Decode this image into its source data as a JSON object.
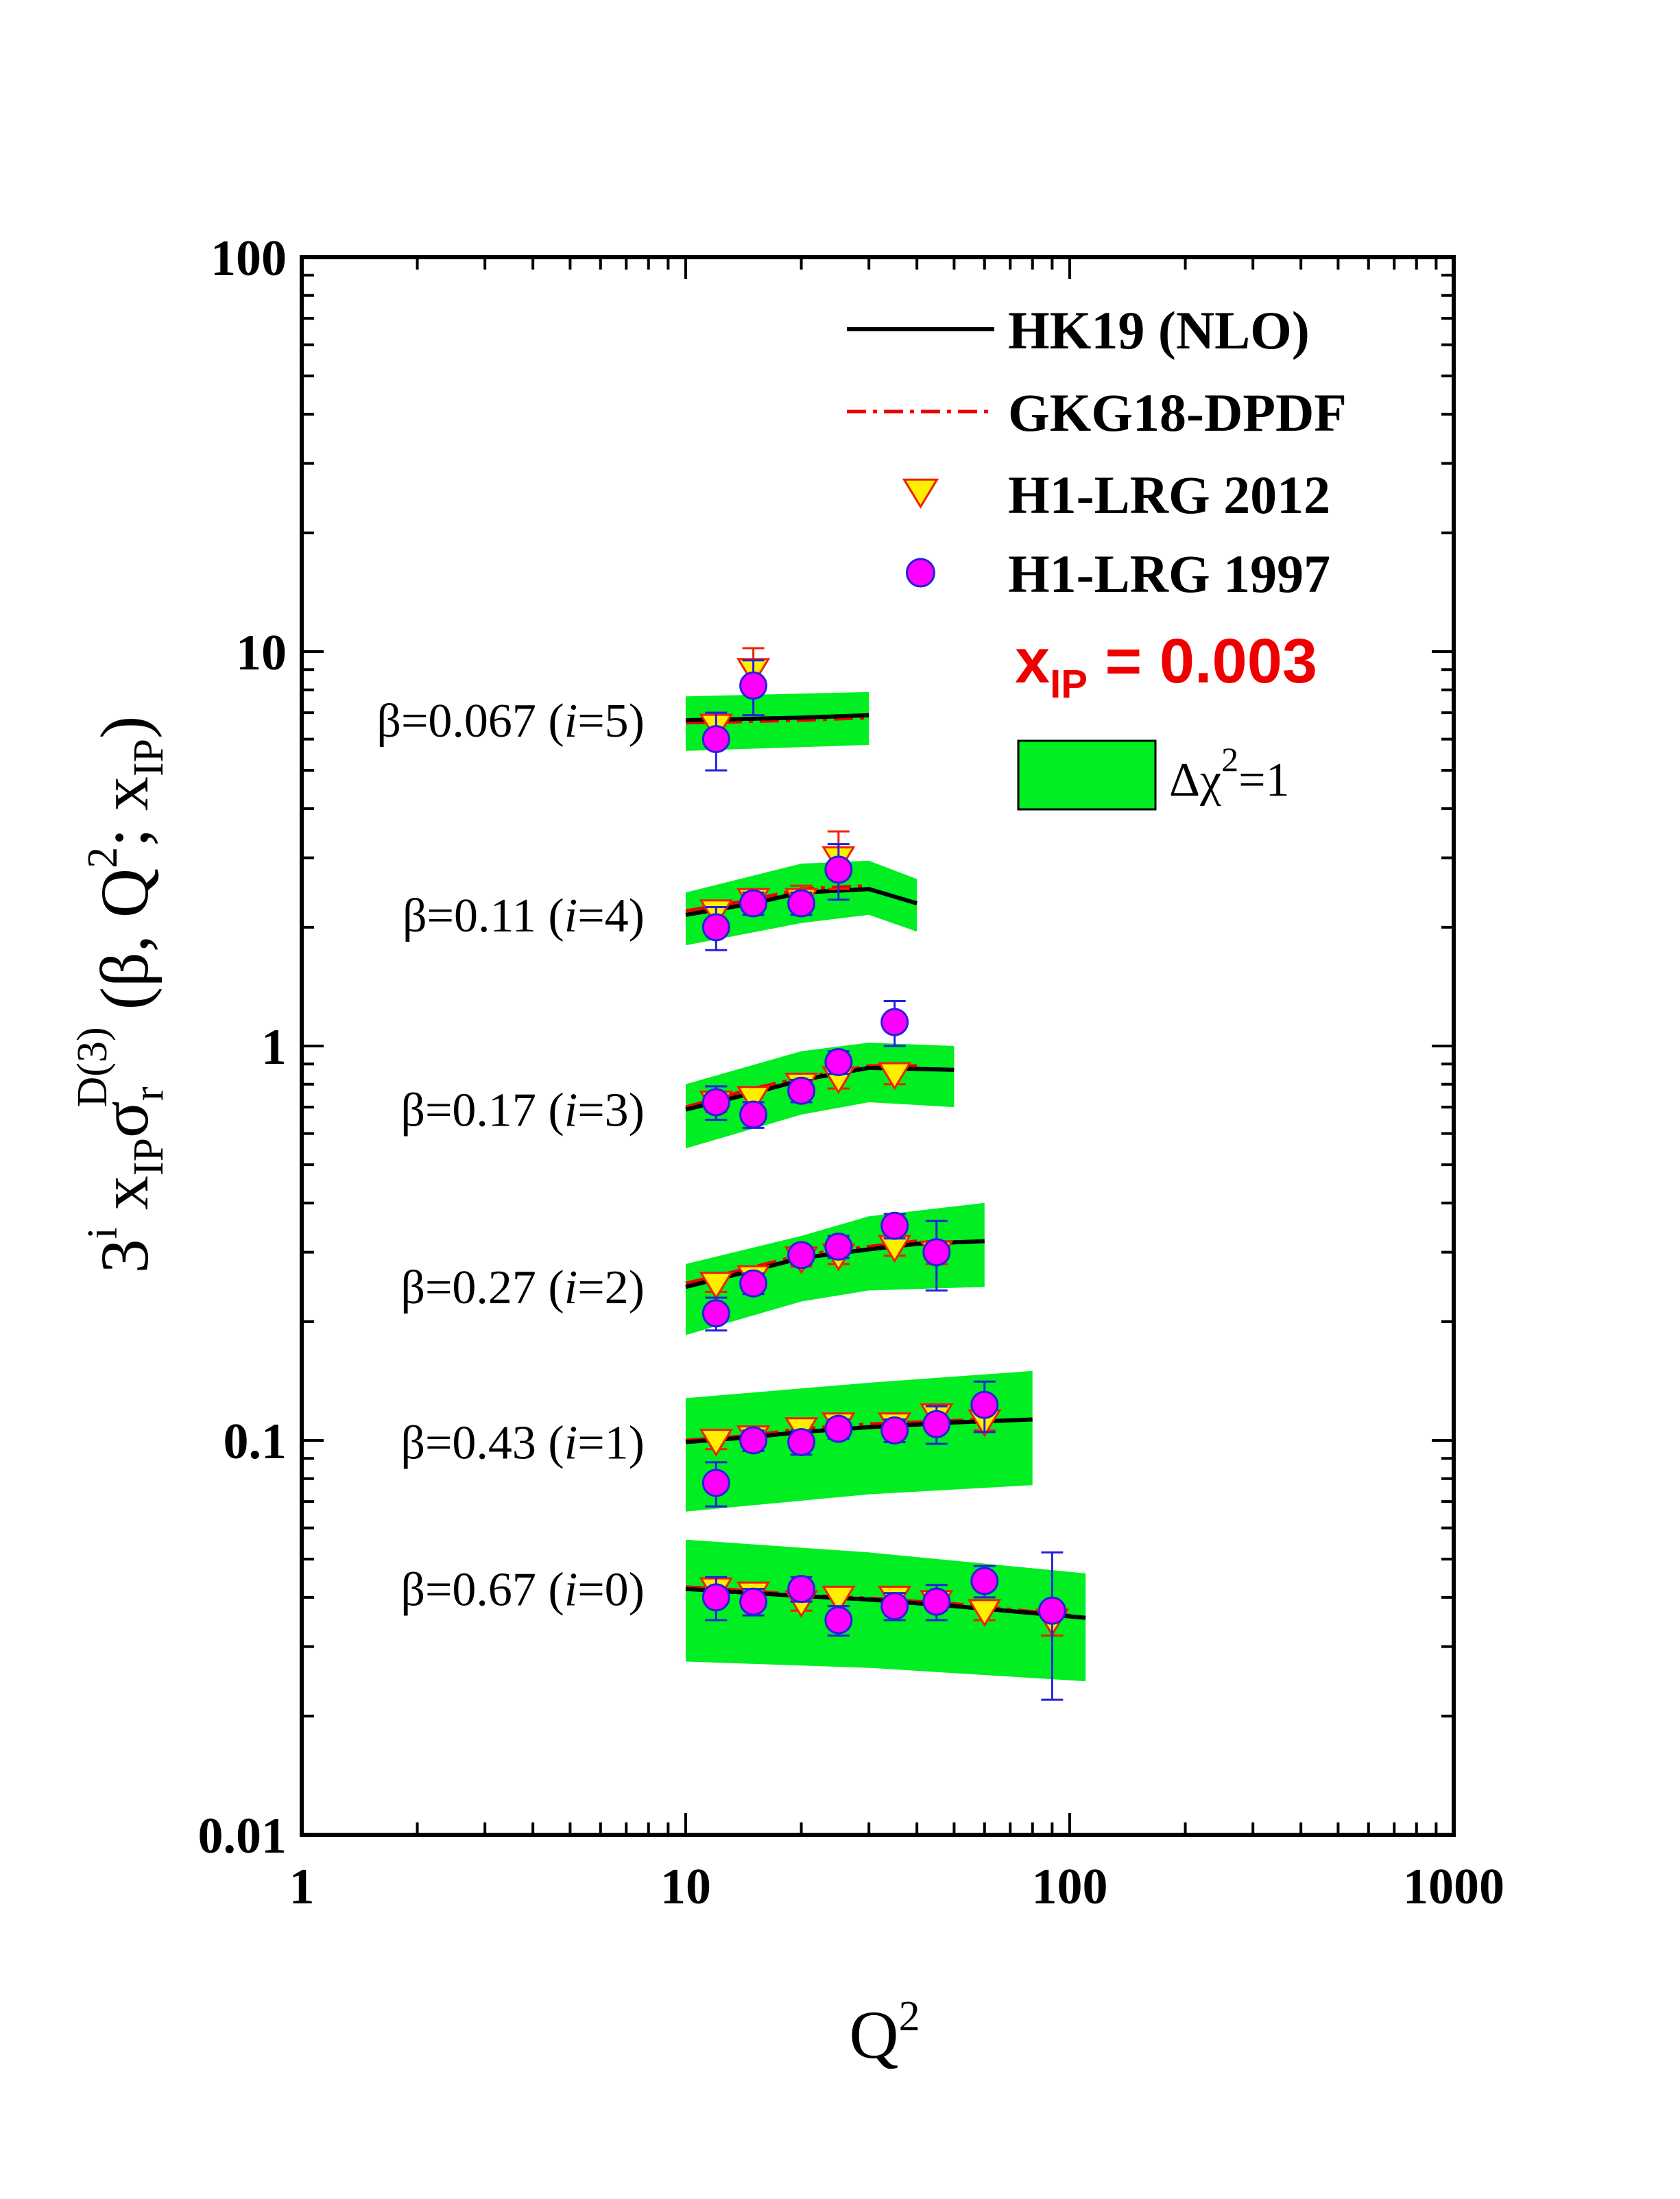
{
  "colors": {
    "band": "#00ee22",
    "hk19_line": "#000000",
    "gkg18_line": "#ee0000",
    "triangle_fill": "#ffee00",
    "triangle_stroke": "#ee2200",
    "circle_fill": "#ff00ff",
    "circle_stroke": "#2222dd",
    "xip_text": "#ee0000"
  },
  "chart_data": {
    "type": "scatter",
    "title": "",
    "xscale": "log",
    "yscale": "log",
    "xlim": [
      1,
      1000
    ],
    "ylim": [
      0.01,
      100
    ],
    "xlabel": "Q",
    "xlabel_sup": "2",
    "ylabel": {
      "prefix": "3",
      "prefix_sup": "i",
      "x": "x",
      "x_sub": "IP",
      "sigma": "σ",
      "sigma_sub": "r",
      "sigma_sup": "D(3)",
      "args": " (β, Q",
      "args_sup": "2",
      "args_mid": "; x",
      "args_sub": "IP",
      "args_end": ")"
    },
    "x_ticks": [
      {
        "value": 1,
        "label": "1"
      },
      {
        "value": 10,
        "label": "10"
      },
      {
        "value": 100,
        "label": "100"
      },
      {
        "value": 1000,
        "label": "1000"
      }
    ],
    "y_ticks": [
      {
        "value": 0.01,
        "label": "0.01"
      },
      {
        "value": 0.1,
        "label": "0.1"
      },
      {
        "value": 1,
        "label": "1"
      },
      {
        "value": 10,
        "label": "10"
      },
      {
        "value": 100,
        "label": "100"
      }
    ],
    "legend": {
      "position": "top-right",
      "entries": [
        {
          "label": "HK19 (NLO)",
          "marker": "solid-line"
        },
        {
          "label": "GKG18-DPDF",
          "marker": "dashdot-line"
        },
        {
          "label": "H1-LRG 2012",
          "marker": "triangle-down"
        },
        {
          "label": "H1-LRG 1997",
          "marker": "circle"
        }
      ],
      "xip_prefix": "x",
      "xip_sub": "IP",
      "xip_value": " = 0.003",
      "band_label": "Δχ",
      "band_label_sup": "2",
      "band_label_end": "=1"
    },
    "series": [
      {
        "beta_label": "β=0.067 (i=5)",
        "beta_parts": {
          "pre": "β=0.067 (",
          "i": "i",
          "post": "=5)"
        },
        "hk19": {
          "x": [
            10,
            20,
            30
          ],
          "y": [
            6.7,
            6.8,
            6.9
          ]
        },
        "gkg18": {
          "x": [
            10,
            20,
            30
          ],
          "y": [
            6.6,
            6.7,
            6.8
          ]
        },
        "band": {
          "x": [
            10,
            30
          ],
          "upper": [
            7.7,
            7.9
          ],
          "lower": [
            5.6,
            5.8
          ]
        },
        "h1_2012": [
          {
            "x": 12,
            "y": 6.5,
            "err": 0.5
          },
          {
            "x": 15,
            "y": 9.0,
            "err": 1.2
          }
        ],
        "h1_1997": [
          {
            "x": 12,
            "y": 6.0,
            "err": 1.0
          },
          {
            "x": 15,
            "y": 8.2,
            "err": 1.3
          }
        ]
      },
      {
        "beta_label": "β=0.11 (i=4)",
        "beta_parts": {
          "pre": "β=0.11 (",
          "i": "i",
          "post": "=4)"
        },
        "hk19": {
          "x": [
            10,
            15,
            20,
            30,
            40
          ],
          "y": [
            2.15,
            2.3,
            2.45,
            2.5,
            2.3
          ]
        },
        "gkg18": {
          "x": [
            10,
            15,
            20,
            30
          ],
          "y": [
            2.2,
            2.35,
            2.5,
            2.55
          ]
        },
        "band": {
          "x": [
            10,
            20,
            30,
            40
          ],
          "upper": [
            2.45,
            2.9,
            2.95,
            2.65
          ],
          "lower": [
            1.8,
            2.05,
            2.15,
            1.95
          ]
        },
        "h1_2012": [
          {
            "x": 12,
            "y": 2.2,
            "err": 0.12
          },
          {
            "x": 15,
            "y": 2.35,
            "err": 0.15
          },
          {
            "x": 20,
            "y": 2.35,
            "err": 0.2
          },
          {
            "x": 25,
            "y": 3.0,
            "err": 0.5
          }
        ],
        "h1_1997": [
          {
            "x": 12,
            "y": 2.0,
            "err": 0.25
          },
          {
            "x": 15,
            "y": 2.3,
            "err": 0.15
          },
          {
            "x": 20,
            "y": 2.3,
            "err": 0.15
          },
          {
            "x": 25,
            "y": 2.8,
            "err": 0.45
          }
        ]
      },
      {
        "beta_label": "β=0.17 (i=3)",
        "beta_parts": {
          "pre": "β=0.17 (",
          "i": "i",
          "post": "=3)"
        },
        "hk19": {
          "x": [
            10,
            15,
            20,
            30,
            50
          ],
          "y": [
            0.69,
            0.76,
            0.82,
            0.88,
            0.87
          ]
        },
        "gkg18": {
          "x": [
            10,
            15,
            20,
            30,
            40
          ],
          "y": [
            0.7,
            0.78,
            0.83,
            0.89,
            0.89
          ]
        },
        "band": {
          "x": [
            10,
            20,
            30,
            50
          ],
          "upper": [
            0.8,
            0.97,
            1.02,
            1.0
          ],
          "lower": [
            0.55,
            0.67,
            0.72,
            0.7
          ]
        },
        "h1_2012": [
          {
            "x": 12,
            "y": 0.72,
            "err": 0.04
          },
          {
            "x": 15,
            "y": 0.74,
            "err": 0.04
          },
          {
            "x": 20,
            "y": 0.8,
            "err": 0.04
          },
          {
            "x": 25,
            "y": 0.83,
            "err": 0.05
          },
          {
            "x": 35,
            "y": 0.85,
            "err": 0.05
          }
        ],
        "h1_1997": [
          {
            "x": 12,
            "y": 0.72,
            "err": 0.07
          },
          {
            "x": 15,
            "y": 0.67,
            "err": 0.05
          },
          {
            "x": 20,
            "y": 0.77,
            "err": 0.05
          },
          {
            "x": 25,
            "y": 0.91,
            "err": 0.06
          },
          {
            "x": 35,
            "y": 1.15,
            "err": 0.15
          }
        ]
      },
      {
        "beta_label": "β=0.27 (i=2)",
        "beta_parts": {
          "pre": "β=0.27 (",
          "i": "i",
          "post": "=2)"
        },
        "hk19": {
          "x": [
            10,
            15,
            20,
            30,
            40,
            60
          ],
          "y": [
            0.245,
            0.27,
            0.29,
            0.305,
            0.315,
            0.32
          ]
        },
        "gkg18": {
          "x": [
            10,
            15,
            20,
            30,
            40
          ],
          "y": [
            0.25,
            0.275,
            0.295,
            0.31,
            0.32
          ]
        },
        "band": {
          "x": [
            10,
            20,
            30,
            60
          ],
          "upper": [
            0.28,
            0.33,
            0.37,
            0.4
          ],
          "lower": [
            0.185,
            0.225,
            0.24,
            0.245
          ]
        },
        "h1_2012": [
          {
            "x": 12,
            "y": 0.25,
            "err": 0.012
          },
          {
            "x": 15,
            "y": 0.26,
            "err": 0.012
          },
          {
            "x": 20,
            "y": 0.29,
            "err": 0.014
          },
          {
            "x": 25,
            "y": 0.295,
            "err": 0.015
          },
          {
            "x": 35,
            "y": 0.31,
            "err": 0.016
          },
          {
            "x": 45,
            "y": 0.3,
            "err": 0.02
          }
        ],
        "h1_1997": [
          {
            "x": 12,
            "y": 0.21,
            "err": 0.02
          },
          {
            "x": 15,
            "y": 0.25,
            "err": 0.015
          },
          {
            "x": 20,
            "y": 0.295,
            "err": 0.015
          },
          {
            "x": 25,
            "y": 0.31,
            "err": 0.02
          },
          {
            "x": 35,
            "y": 0.35,
            "err": 0.025
          },
          {
            "x": 45,
            "y": 0.3,
            "err": 0.06
          }
        ]
      },
      {
        "beta_label": "β=0.43 (i=1)",
        "beta_parts": {
          "pre": "β=0.43 (",
          "i": "i",
          "post": "=1)"
        },
        "hk19": {
          "x": [
            10,
            15,
            20,
            30,
            50,
            80
          ],
          "y": [
            0.099,
            0.102,
            0.105,
            0.108,
            0.111,
            0.113
          ]
        },
        "gkg18": {
          "x": [
            10,
            15,
            20,
            30,
            60
          ],
          "y": [
            0.1,
            0.103,
            0.107,
            0.11,
            0.113
          ]
        },
        "band": {
          "x": [
            10,
            30,
            80
          ],
          "upper": [
            0.128,
            0.14,
            0.15
          ],
          "lower": [
            0.066,
            0.073,
            0.077
          ]
        },
        "h1_2012": [
          {
            "x": 12,
            "y": 0.1,
            "err": 0.005
          },
          {
            "x": 15,
            "y": 0.102,
            "err": 0.005
          },
          {
            "x": 20,
            "y": 0.107,
            "err": 0.005
          },
          {
            "x": 25,
            "y": 0.11,
            "err": 0.005
          },
          {
            "x": 35,
            "y": 0.11,
            "err": 0.005
          },
          {
            "x": 45,
            "y": 0.116,
            "err": 0.006
          },
          {
            "x": 60,
            "y": 0.112,
            "err": 0.006
          }
        ],
        "h1_1997": [
          {
            "x": 12,
            "y": 0.078,
            "err": 0.01
          },
          {
            "x": 15,
            "y": 0.1,
            "err": 0.006
          },
          {
            "x": 20,
            "y": 0.099,
            "err": 0.007
          },
          {
            "x": 25,
            "y": 0.107,
            "err": 0.006
          },
          {
            "x": 35,
            "y": 0.106,
            "err": 0.007
          },
          {
            "x": 45,
            "y": 0.11,
            "err": 0.012
          },
          {
            "x": 60,
            "y": 0.123,
            "err": 0.018
          }
        ]
      },
      {
        "beta_label": "β=0.67 (i=0)",
        "beta_parts": {
          "pre": "β=0.67 (",
          "i": "i",
          "post": "=0)"
        },
        "hk19": {
          "x": [
            10,
            15,
            20,
            30,
            50,
            110
          ],
          "y": [
            0.042,
            0.041,
            0.0403,
            0.0395,
            0.038,
            0.0355
          ]
        },
        "gkg18": {
          "x": [
            10,
            15,
            20,
            30,
            50,
            100
          ],
          "y": [
            0.0425,
            0.0415,
            0.0405,
            0.0398,
            0.0385,
            0.036
          ]
        },
        "band": {
          "x": [
            10,
            30,
            110
          ],
          "upper": [
            0.056,
            0.052,
            0.046
          ],
          "lower": [
            0.0275,
            0.0265,
            0.0245
          ]
        },
        "h1_2012": [
          {
            "x": 12,
            "y": 0.042,
            "err": 0.002
          },
          {
            "x": 15,
            "y": 0.041,
            "err": 0.002
          },
          {
            "x": 20,
            "y": 0.039,
            "err": 0.002
          },
          {
            "x": 25,
            "y": 0.04,
            "err": 0.002
          },
          {
            "x": 35,
            "y": 0.04,
            "err": 0.002
          },
          {
            "x": 45,
            "y": 0.039,
            "err": 0.002
          },
          {
            "x": 60,
            "y": 0.037,
            "err": 0.002
          },
          {
            "x": 90,
            "y": 0.035,
            "err": 0.003
          }
        ],
        "h1_1997": [
          {
            "x": 12,
            "y": 0.04,
            "err": 0.005
          },
          {
            "x": 15,
            "y": 0.039,
            "err": 0.003
          },
          {
            "x": 20,
            "y": 0.042,
            "err": 0.003
          },
          {
            "x": 25,
            "y": 0.035,
            "err": 0.003
          },
          {
            "x": 35,
            "y": 0.038,
            "err": 0.003
          },
          {
            "x": 45,
            "y": 0.039,
            "err": 0.004
          },
          {
            "x": 60,
            "y": 0.044,
            "err": 0.004
          },
          {
            "x": 90,
            "y": 0.037,
            "err": 0.015
          }
        ]
      }
    ]
  }
}
